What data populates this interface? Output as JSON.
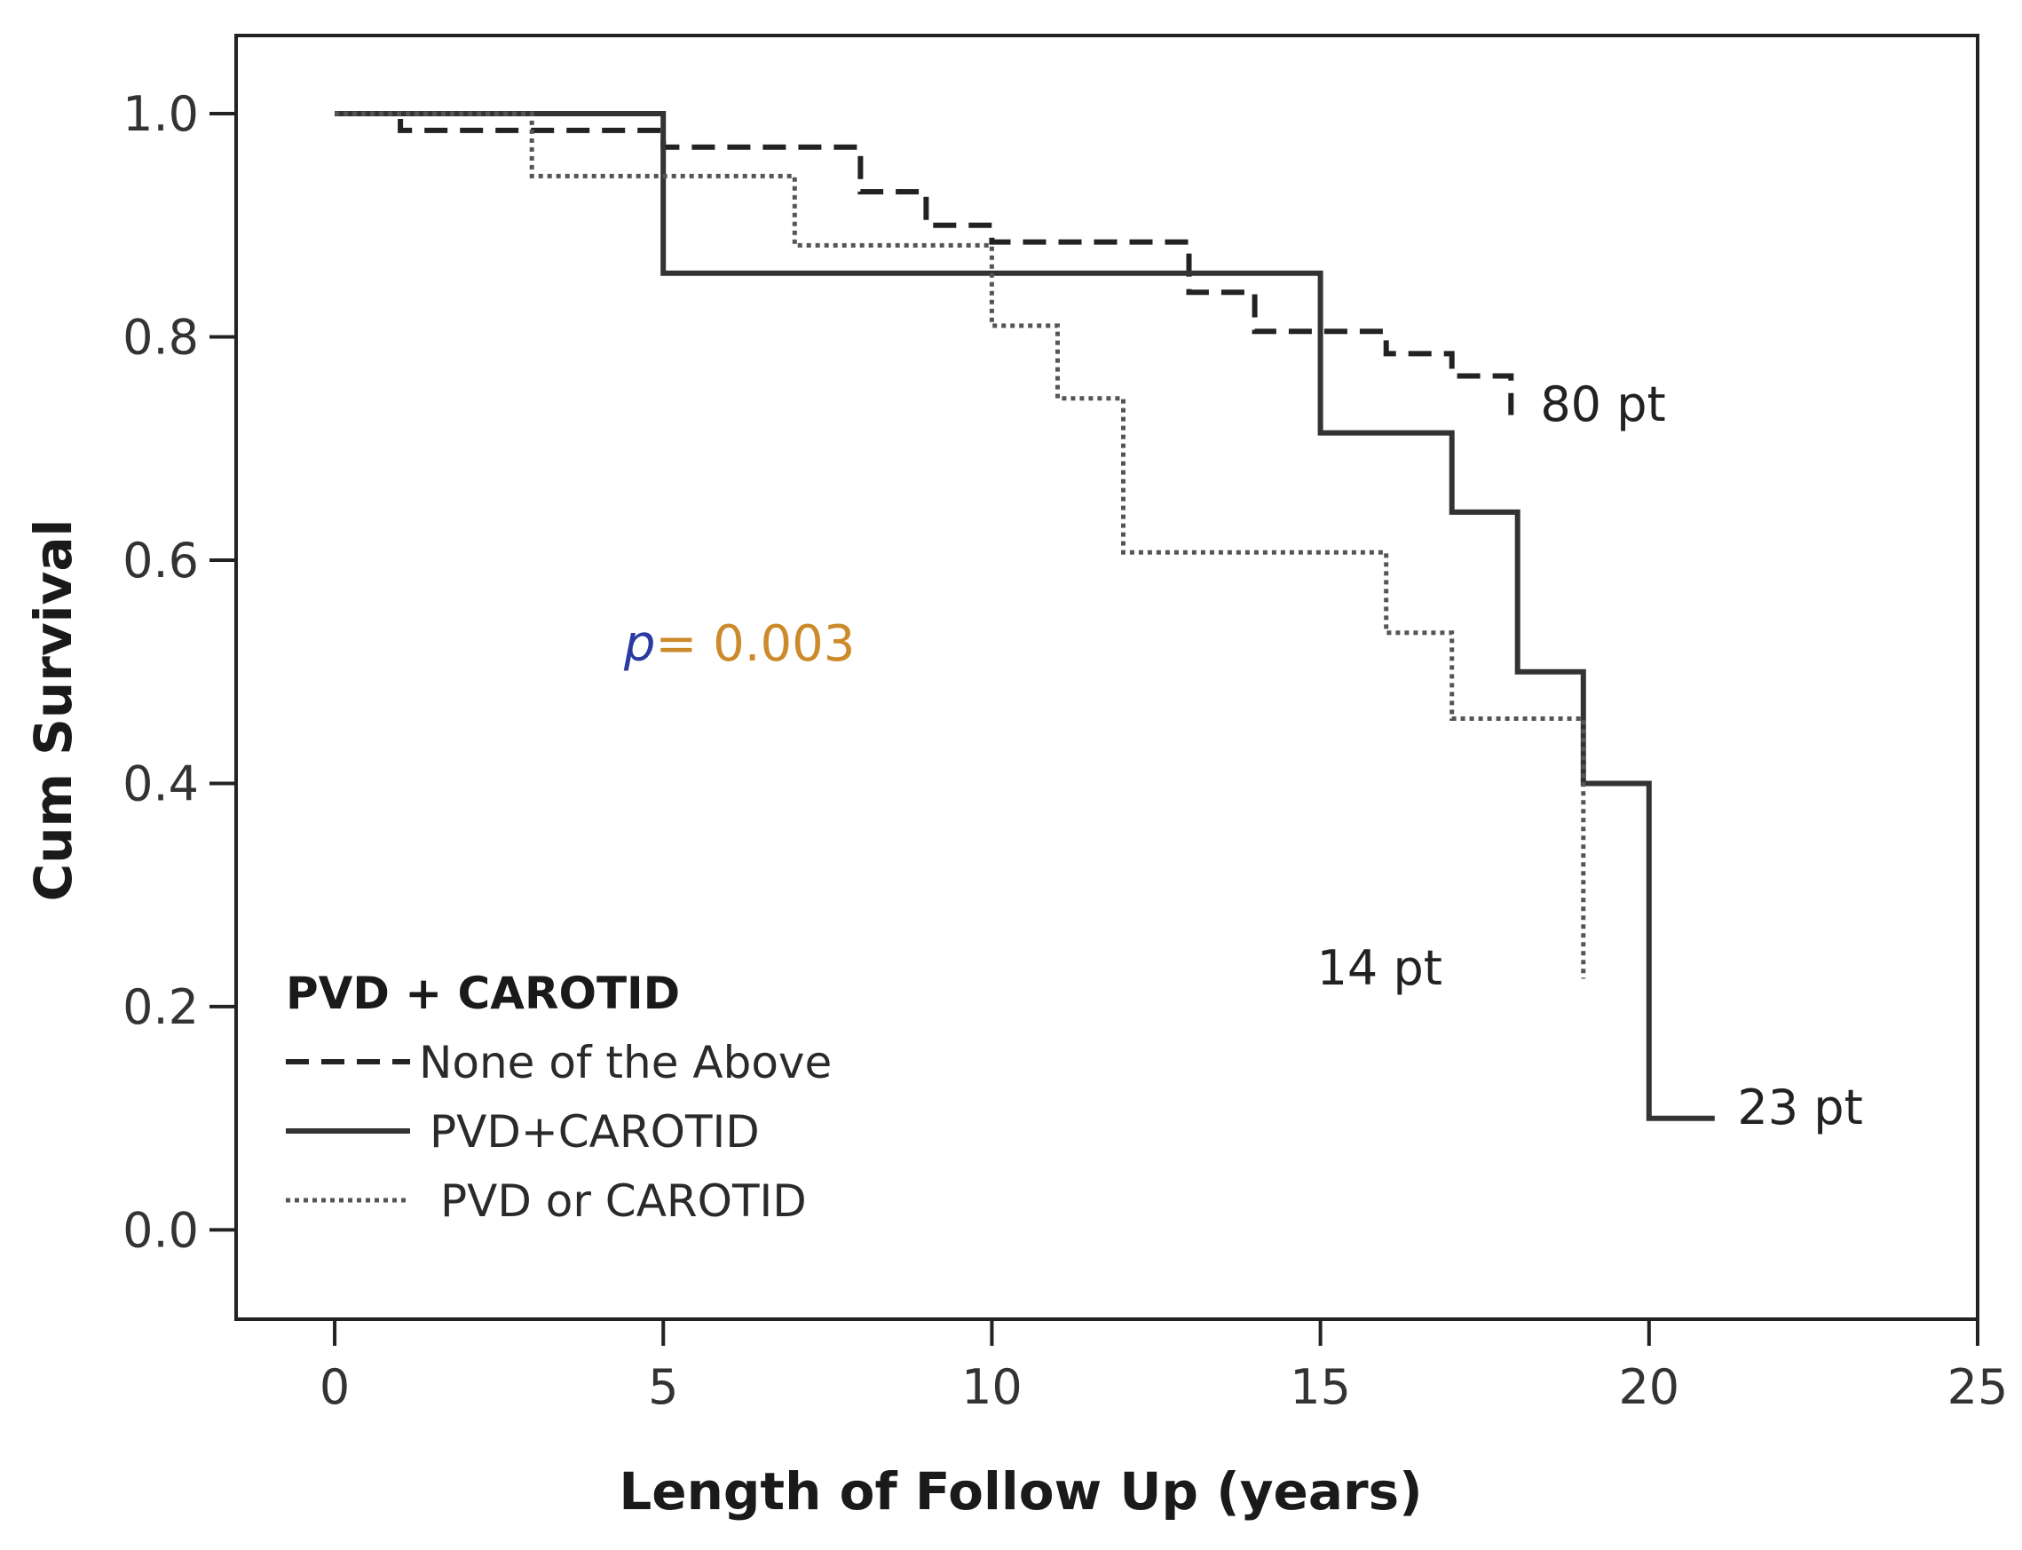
{
  "chart_data": {
    "type": "line",
    "subtype": "kaplan-meier",
    "xlabel": "Length of Follow Up (years)",
    "ylabel": "Cum Survival",
    "xlim": [
      -1.5,
      25
    ],
    "ylim": [
      -0.08,
      1.07
    ],
    "x_ticks": [
      0,
      5,
      10,
      15,
      20,
      25
    ],
    "y_ticks": [
      0.0,
      0.2,
      0.4,
      0.6,
      0.8,
      1.0
    ],
    "x_tick_labels": [
      "0",
      "5",
      "10",
      "15",
      "20",
      "25"
    ],
    "y_tick_labels": [
      "0.0",
      "0.2",
      "0.4",
      "0.6",
      "0.8",
      "1.0"
    ],
    "grid": false,
    "legend": {
      "title": "PVD + CAROTID",
      "position": "bottom-left"
    },
    "series": [
      {
        "name": "None of the Above",
        "style": "dashed",
        "color": "#222222",
        "points": [
          [
            0,
            1.0
          ],
          [
            1,
            1.0
          ],
          [
            1,
            0.985
          ],
          [
            5,
            0.985
          ],
          [
            5,
            0.97
          ],
          [
            8,
            0.97
          ],
          [
            8,
            0.93
          ],
          [
            9,
            0.93
          ],
          [
            9,
            0.9
          ],
          [
            10,
            0.9
          ],
          [
            10,
            0.885
          ],
          [
            13,
            0.885
          ],
          [
            13,
            0.84
          ],
          [
            14,
            0.84
          ],
          [
            14,
            0.805
          ],
          [
            16,
            0.805
          ],
          [
            16,
            0.785
          ],
          [
            17,
            0.785
          ],
          [
            17,
            0.765
          ],
          [
            17.9,
            0.765
          ],
          [
            17.9,
            0.73
          ]
        ]
      },
      {
        "name": "PVD+CAROTID",
        "style": "solid",
        "color": "#333333",
        "points": [
          [
            0,
            1.0
          ],
          [
            5,
            1.0
          ],
          [
            5,
            0.857
          ],
          [
            15,
            0.857
          ],
          [
            15,
            0.714
          ],
          [
            17,
            0.714
          ],
          [
            17,
            0.643
          ],
          [
            18,
            0.643
          ],
          [
            18,
            0.5
          ],
          [
            19,
            0.5
          ],
          [
            19,
            0.4
          ],
          [
            20,
            0.4
          ],
          [
            20,
            0.1
          ],
          [
            21,
            0.1
          ]
        ]
      },
      {
        "name": "PVD or CAROTID",
        "style": "dotted",
        "color": "#555555",
        "points": [
          [
            0,
            1.0
          ],
          [
            3,
            1.0
          ],
          [
            3,
            0.944
          ],
          [
            7,
            0.944
          ],
          [
            7,
            0.882
          ],
          [
            10,
            0.882
          ],
          [
            10,
            0.81
          ],
          [
            11,
            0.81
          ],
          [
            11,
            0.745
          ],
          [
            12,
            0.745
          ],
          [
            12,
            0.607
          ],
          [
            16,
            0.607
          ],
          [
            16,
            0.535
          ],
          [
            17,
            0.535
          ],
          [
            17,
            0.458
          ],
          [
            19,
            0.458
          ],
          [
            19,
            0.225
          ]
        ]
      }
    ],
    "annotations": [
      {
        "text": "80 pt",
        "x": 19.3,
        "y": 0.725
      },
      {
        "text": "14 pt",
        "x": 15.9,
        "y": 0.22
      },
      {
        "text": "23 pt",
        "x": 22.3,
        "y": 0.095
      }
    ],
    "p_value": {
      "prefix": "p",
      "text": "= 0.003",
      "x": 4.4,
      "y": 0.51,
      "color": "#cc8a2a",
      "prefix_color": "#2a3aa0"
    }
  }
}
